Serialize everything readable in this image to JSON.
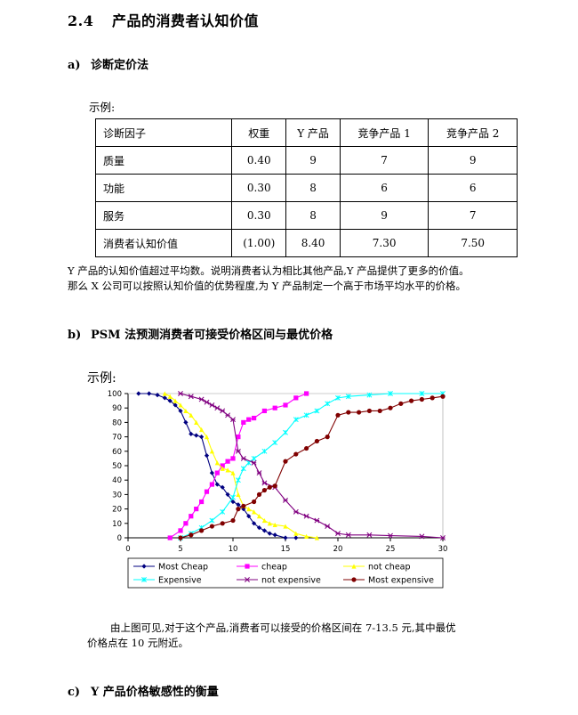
{
  "section": {
    "number": "2.4",
    "title": "产品的消费者认知价值"
  },
  "subsection_a": {
    "label": "a)",
    "title": "诊断定价法"
  },
  "example_label_a": "示例:",
  "table": {
    "headers": [
      "诊断因子",
      "权重",
      "Y 产品",
      "竞争产品 1",
      "竞争产品 2"
    ],
    "rows": [
      [
        "质量",
        "0.40",
        "9",
        "7",
        "9"
      ],
      [
        "功能",
        "0.30",
        "8",
        "6",
        "6"
      ],
      [
        "服务",
        "0.30",
        "8",
        "9",
        "7"
      ],
      [
        "消费者认知价值",
        "(1.00)",
        "8.40",
        "7.30",
        "7.50"
      ]
    ]
  },
  "paragraph_a": {
    "line1": "Y 产品的认知价值超过平均数。说明消费者认为相比其他产品,Y 产品提供了更多的价值。",
    "line2": "那么 X 公司可以按照认知价值的优势程度,为 Y 产品制定一个高于市场平均水平的价格。"
  },
  "subsection_b": {
    "label": "b)",
    "title": "PSM 法预测消费者可接受价格区间与最优价格"
  },
  "example_label_b": "示例:",
  "chart_data": {
    "type": "line",
    "xlim": [
      0,
      30
    ],
    "ylim": [
      0,
      100
    ],
    "x_ticks": [
      "0",
      "5",
      "10",
      "15",
      "20",
      "25",
      "30"
    ],
    "y_ticks": [
      "0",
      "10",
      "20",
      "30",
      "40",
      "50",
      "60",
      "70",
      "80",
      "90",
      "100"
    ],
    "grid": false,
    "legend_placement": "bottom",
    "series": [
      {
        "name": "Most Cheap",
        "color": "#000080",
        "marker": "diamond",
        "points": [
          [
            1,
            100
          ],
          [
            2,
            100
          ],
          [
            2.8,
            99
          ],
          [
            3.5,
            97
          ],
          [
            4,
            95
          ],
          [
            4.5,
            92
          ],
          [
            5,
            88
          ],
          [
            5.5,
            80
          ],
          [
            6,
            72
          ],
          [
            6.5,
            71
          ],
          [
            7,
            70
          ],
          [
            7.5,
            57
          ],
          [
            8,
            45
          ],
          [
            8.5,
            37
          ],
          [
            9,
            35
          ],
          [
            9.5,
            30
          ],
          [
            10,
            25
          ],
          [
            10.5,
            23
          ],
          [
            11,
            20
          ],
          [
            11.5,
            15
          ],
          [
            12,
            10
          ],
          [
            12.5,
            7
          ],
          [
            13,
            5
          ],
          [
            13.5,
            3
          ],
          [
            14,
            2
          ],
          [
            15,
            0
          ],
          [
            16,
            0
          ]
        ]
      },
      {
        "name": "cheap",
        "color": "#FF00FF",
        "marker": "square",
        "points": [
          [
            4,
            0
          ],
          [
            5,
            5
          ],
          [
            5.5,
            10
          ],
          [
            6,
            15
          ],
          [
            6.5,
            20
          ],
          [
            7,
            25
          ],
          [
            7.5,
            32
          ],
          [
            8,
            37
          ],
          [
            8.5,
            45
          ],
          [
            9,
            50
          ],
          [
            9.5,
            53
          ],
          [
            10,
            55
          ],
          [
            10.5,
            70
          ],
          [
            11,
            80
          ],
          [
            11.5,
            82
          ],
          [
            12,
            83
          ],
          [
            13,
            88
          ],
          [
            14,
            90
          ],
          [
            15,
            92
          ],
          [
            16,
            97
          ],
          [
            17,
            100
          ]
        ]
      },
      {
        "name": "not cheap",
        "color": "#FFFF00",
        "marker": "triangle",
        "points": [
          [
            3.5,
            100
          ],
          [
            4,
            98
          ],
          [
            4.5,
            95
          ],
          [
            5,
            92
          ],
          [
            5.5,
            88
          ],
          [
            6,
            85
          ],
          [
            6.5,
            80
          ],
          [
            7,
            75
          ],
          [
            7.5,
            70
          ],
          [
            8,
            60
          ],
          [
            8.5,
            52
          ],
          [
            9,
            48
          ],
          [
            9.5,
            47
          ],
          [
            10,
            45
          ],
          [
            10.5,
            30
          ],
          [
            11,
            22
          ],
          [
            11.5,
            20
          ],
          [
            12,
            18
          ],
          [
            12.5,
            15
          ],
          [
            13,
            12
          ],
          [
            13.5,
            10
          ],
          [
            14,
            9
          ],
          [
            15,
            8
          ],
          [
            16,
            3
          ],
          [
            17,
            1
          ],
          [
            18,
            0
          ]
        ]
      },
      {
        "name": "Expensive",
        "color": "#00FFFF",
        "marker": "star",
        "points": [
          [
            5,
            0
          ],
          [
            6,
            3
          ],
          [
            7,
            7
          ],
          [
            8,
            12
          ],
          [
            9,
            18
          ],
          [
            10,
            28
          ],
          [
            10.5,
            40
          ],
          [
            11,
            48
          ],
          [
            11.5,
            52
          ],
          [
            12,
            55
          ],
          [
            13,
            60
          ],
          [
            14,
            66
          ],
          [
            15,
            73
          ],
          [
            16,
            82
          ],
          [
            17,
            85
          ],
          [
            18,
            88
          ],
          [
            19,
            93
          ],
          [
            20,
            97
          ],
          [
            21,
            98
          ],
          [
            23,
            99
          ],
          [
            25,
            100
          ],
          [
            28,
            100
          ],
          [
            30,
            100
          ]
        ]
      },
      {
        "name": "not expensive",
        "color": "#800080",
        "marker": "asterisk",
        "points": [
          [
            5,
            100
          ],
          [
            6,
            98
          ],
          [
            7,
            96
          ],
          [
            7.5,
            94
          ],
          [
            8,
            92
          ],
          [
            8.5,
            90
          ],
          [
            9,
            88
          ],
          [
            9.5,
            85
          ],
          [
            10,
            82
          ],
          [
            10.5,
            60
          ],
          [
            11,
            55
          ],
          [
            12,
            52
          ],
          [
            12.5,
            45
          ],
          [
            13,
            38
          ],
          [
            14,
            35
          ],
          [
            15,
            26
          ],
          [
            16,
            18
          ],
          [
            17,
            15
          ],
          [
            18,
            12
          ],
          [
            19,
            8
          ],
          [
            20,
            3
          ],
          [
            21,
            2
          ],
          [
            23,
            2
          ],
          [
            25,
            1.5
          ],
          [
            28,
            1
          ],
          [
            30,
            0
          ]
        ]
      },
      {
        "name": "Most expensive",
        "color": "#800000",
        "marker": "circle",
        "points": [
          [
            5,
            0
          ],
          [
            6,
            2
          ],
          [
            7,
            5
          ],
          [
            8,
            8
          ],
          [
            9,
            10
          ],
          [
            10,
            12
          ],
          [
            10.5,
            20
          ],
          [
            11,
            22
          ],
          [
            12,
            25
          ],
          [
            12.5,
            30
          ],
          [
            13,
            33
          ],
          [
            13.5,
            35
          ],
          [
            14,
            36
          ],
          [
            15,
            53
          ],
          [
            16,
            58
          ],
          [
            17,
            62
          ],
          [
            18,
            67
          ],
          [
            19,
            70
          ],
          [
            20,
            85
          ],
          [
            21,
            87
          ],
          [
            22,
            87
          ],
          [
            23,
            88
          ],
          [
            24,
            88
          ],
          [
            25,
            90
          ],
          [
            26,
            93
          ],
          [
            27,
            95
          ],
          [
            28,
            96
          ],
          [
            29,
            97
          ],
          [
            30,
            98
          ]
        ]
      }
    ]
  },
  "paragraph_b": {
    "line1": "由上图可见,对于这个产品,消费者可以接受的价格区间在 7-13.5 元,其中最优",
    "line2": "价格点在 10 元附近。"
  },
  "subsection_c": {
    "label": "c)",
    "title": "Y 产品价格敏感性的衡量"
  }
}
